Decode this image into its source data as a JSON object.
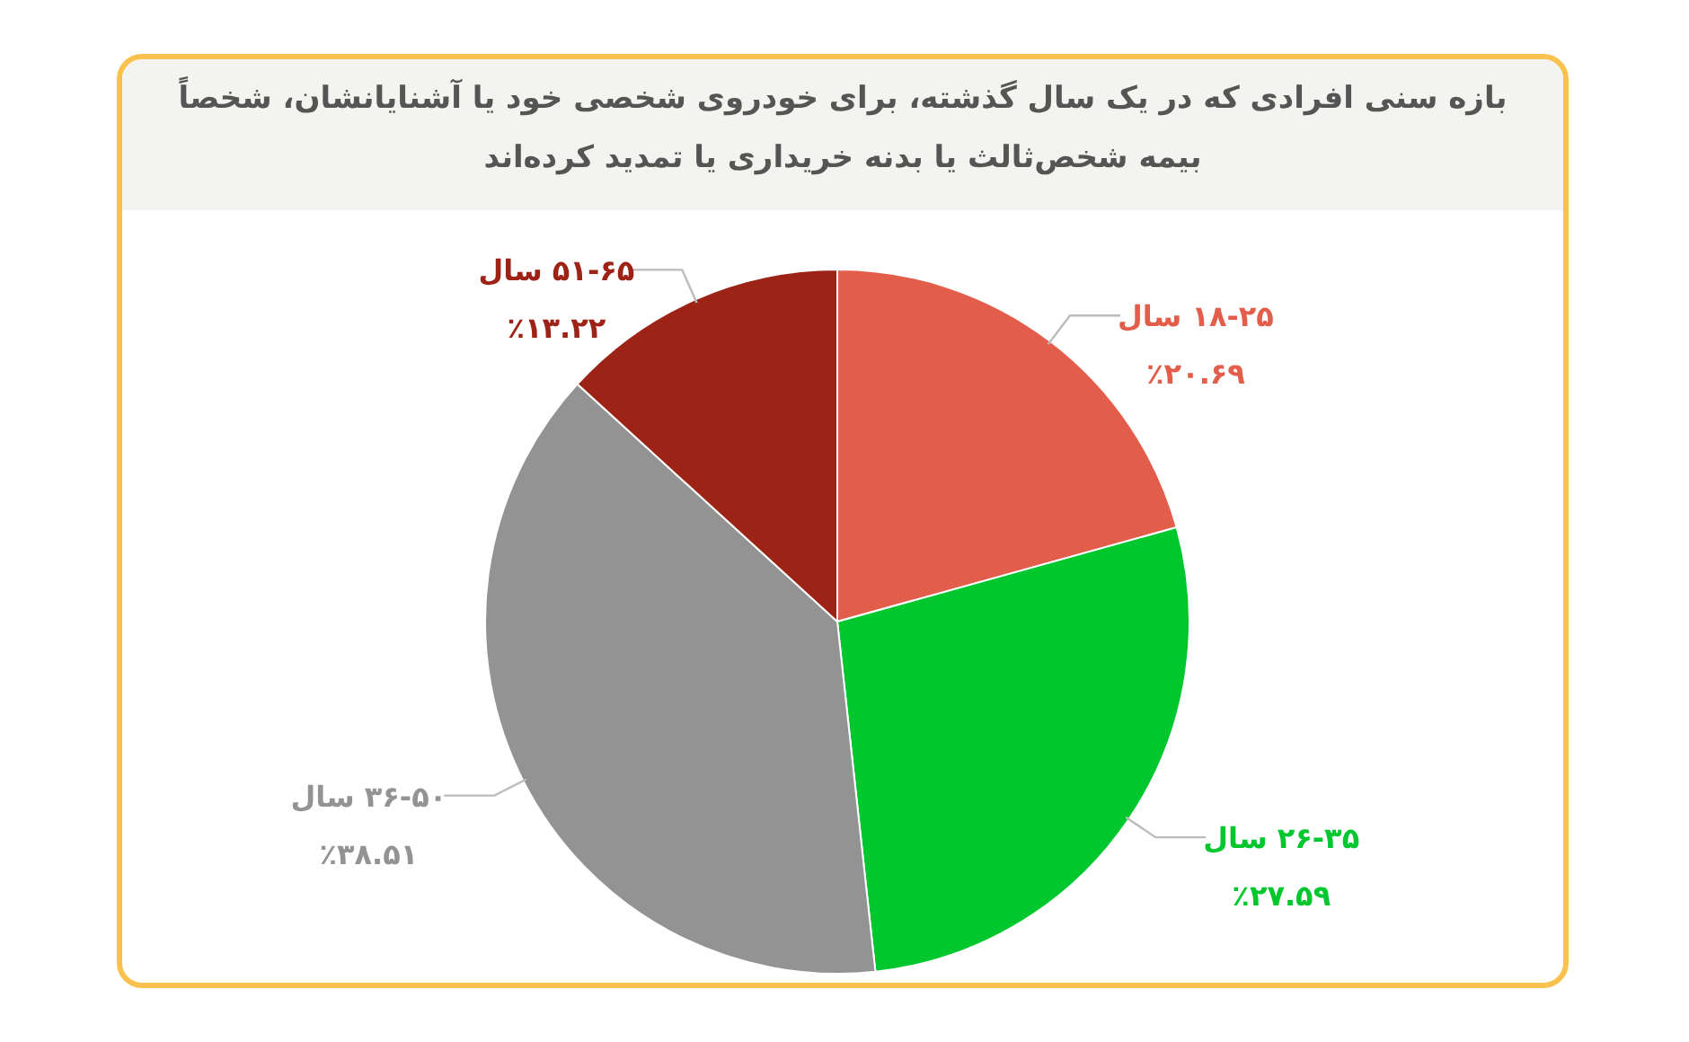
{
  "chart_data": {
    "type": "pie",
    "title": "بازه سنی افرادی که در یک سال گذشته، برای خودروی شخصی خود یا آشنایانشان، شخصاً بیمه شخص‌ثالث یا بدنه خریداری یا تمدید کرده‌اند",
    "categories": [
      "۱۸-۲۵ سال",
      "۲۶-۳۵ سال",
      "۳۶-۵۰ سال",
      "۵۱-۶۵ سال"
    ],
    "values": [
      20.69,
      27.59,
      38.51,
      13.22
    ],
    "colors": [
      "#e35d4b",
      "#00c72e",
      "#939393",
      "#9e2317"
    ],
    "value_labels": [
      "٪۲۰.۶۹",
      "٪۲۷.۵۹",
      "٪۳۸.۵۱",
      "٪۱۳.۲۲"
    ]
  }
}
